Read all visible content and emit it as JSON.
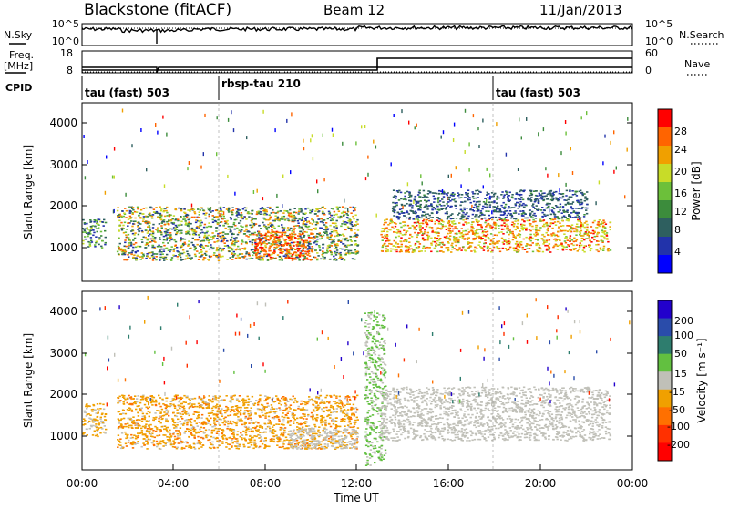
{
  "header": {
    "station": "Blackstone (fitACF)",
    "beam": "Beam 12",
    "date": "11/Jan/2013"
  },
  "left_labels": {
    "nsky": "N.Sky",
    "freq_line1": "Freq.",
    "freq_line2": "[MHz]",
    "cpid": "CPID"
  },
  "right_labels": {
    "nsearch": "N.Search",
    "nave": "Nave"
  },
  "noise_panel": {
    "left_ticks": [
      "10^5",
      "10^0"
    ],
    "right_ticks": [
      "10^5",
      "10^0"
    ]
  },
  "freq_panel": {
    "left_ticks": [
      "18",
      "8"
    ],
    "right_ticks": [
      "60",
      "0"
    ]
  },
  "cpid_panel": {
    "segments": [
      {
        "label": "tau (fast) 503",
        "start_hour": 0
      },
      {
        "label": "rbsp-tau 210",
        "start_hour": 6
      },
      {
        "label": "tau (fast) 503",
        "start_hour": 18
      }
    ]
  },
  "x_axis": {
    "label": "Time UT",
    "ticks": [
      "00:00",
      "04:00",
      "08:00",
      "12:00",
      "16:00",
      "20:00",
      "00:00"
    ]
  },
  "power_panel": {
    "ylabel": "Slant Range [km]",
    "yticks": [
      "1000",
      "2000",
      "3000",
      "4000"
    ],
    "colorbar_label": "Power [dB]",
    "colorbar_ticks": [
      "28",
      "24",
      "20",
      "16",
      "12",
      "8",
      "4"
    ]
  },
  "velocity_panel": {
    "ylabel": "Slant Range [km]",
    "yticks": [
      "1000",
      "2000",
      "3000",
      "4000"
    ],
    "colorbar_label": "Velocity [m s⁻¹]",
    "colorbar_ticks": [
      "200",
      "100",
      "50",
      "15",
      "-15",
      "-50",
      "-100",
      "-200"
    ]
  },
  "chart_data": [
    {
      "type": "heatmap",
      "title": "Blackstone (fitACF) Beam 12 11/Jan/2013",
      "xlabel": "Time UT",
      "ylabel": "Slant Range [km]",
      "xlim": [
        0,
        24
      ],
      "ylim": [
        180,
        4500
      ],
      "colorbar": {
        "label": "Power [dB]",
        "range": [
          0,
          32
        ]
      },
      "colors": [
        "#0000ff",
        "#2233aa",
        "#2e5f5f",
        "#3c8c3c",
        "#6cc03a",
        "#c8dc28",
        "#f0a000",
        "#ff6400",
        "#ff0000"
      ],
      "features": [
        {
          "hours": [
            0.0,
            1.0
          ],
          "range_km": [
            1000,
            1700
          ],
          "power_db": [
            4,
            20
          ]
        },
        {
          "hours": [
            1.5,
            12.0
          ],
          "range_km": [
            700,
            2000
          ],
          "power_db": [
            4,
            28
          ]
        },
        {
          "hours": [
            7.5,
            10.0
          ],
          "range_km": [
            700,
            1400
          ],
          "power_db": [
            24,
            30
          ]
        },
        {
          "hours": [
            13.0,
            23.0
          ],
          "range_km": [
            900,
            1700
          ],
          "power_db": [
            16,
            30
          ]
        },
        {
          "hours": [
            13.5,
            22.0
          ],
          "range_km": [
            1700,
            2400
          ],
          "power_db": [
            4,
            12
          ]
        }
      ]
    },
    {
      "type": "heatmap",
      "title": "Blackstone (fitACF) Beam 12 11/Jan/2013",
      "xlabel": "Time UT",
      "ylabel": "Slant Range [km]",
      "xlim": [
        0,
        24
      ],
      "ylim": [
        180,
        4500
      ],
      "colorbar": {
        "label": "Velocity [m s⁻¹]",
        "range": [
          -250,
          250
        ]
      },
      "colors": [
        "#2200cc",
        "#2a4caa",
        "#2e7d6e",
        "#62c040",
        "#c0c0b8",
        "#f0a000",
        "#ff7000",
        "#ff3000",
        "#ff0000"
      ],
      "features": [
        {
          "hours": [
            0.0,
            1.0
          ],
          "range_km": [
            1000,
            1800
          ],
          "velocity": [
            -50,
            -15
          ]
        },
        {
          "hours": [
            1.5,
            12.0
          ],
          "range_km": [
            700,
            2000
          ],
          "velocity": [
            -100,
            -15
          ]
        },
        {
          "hours": [
            9.0,
            12.0
          ],
          "range_km": [
            700,
            1200
          ],
          "velocity": [
            -15,
            15
          ]
        },
        {
          "hours": [
            12.3,
            13.2
          ],
          "range_km": [
            300,
            4000
          ],
          "velocity": [
            15,
            50
          ]
        },
        {
          "hours": [
            13.0,
            23.0
          ],
          "range_km": [
            900,
            2200
          ],
          "velocity": [
            -15,
            15
          ]
        }
      ]
    }
  ]
}
